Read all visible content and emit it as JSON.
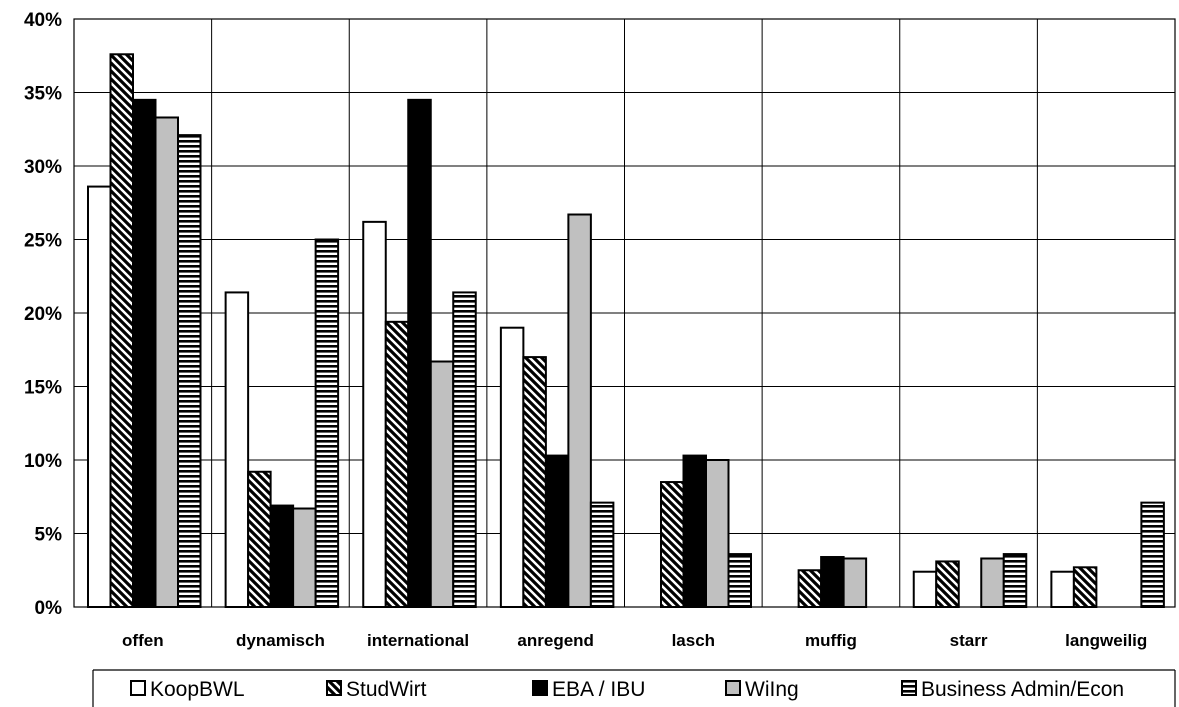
{
  "chart_data": {
    "type": "bar",
    "categories": [
      "offen",
      "dynamisch",
      "international",
      "anregend",
      "lasch",
      "muffig",
      "starr",
      "langweilig"
    ],
    "series": [
      {
        "name": "KoopBWL",
        "values": [
          28.6,
          21.4,
          26.2,
          19.0,
          0,
          0,
          2.4,
          2.4
        ]
      },
      {
        "name": "StudWirt",
        "values": [
          37.6,
          9.2,
          19.4,
          17.0,
          8.5,
          2.5,
          3.1,
          2.7
        ]
      },
      {
        "name": "EBA / IBU",
        "values": [
          34.5,
          6.9,
          34.5,
          10.3,
          10.3,
          3.4,
          0,
          0
        ]
      },
      {
        "name": "WiIng",
        "values": [
          33.3,
          6.7,
          16.7,
          26.7,
          10.0,
          3.3,
          3.3,
          0
        ]
      },
      {
        "name": "Business Admin/Econ",
        "values": [
          32.1,
          25.0,
          21.4,
          7.1,
          3.6,
          0,
          3.6,
          7.1
        ]
      }
    ],
    "yticks": [
      "0%",
      "5%",
      "10%",
      "15%",
      "20%",
      "25%",
      "30%",
      "35%",
      "40%"
    ],
    "ylim": [
      0,
      40
    ],
    "grid": true,
    "legend": "bottom"
  },
  "colors": {
    "KoopBWL": "#ffffff",
    "StudWirt": "diagonal-hatch",
    "EBA / IBU": "#000000",
    "WiIng": "#c0c0c0",
    "Business Admin/Econ": "horizontal-stripes"
  }
}
